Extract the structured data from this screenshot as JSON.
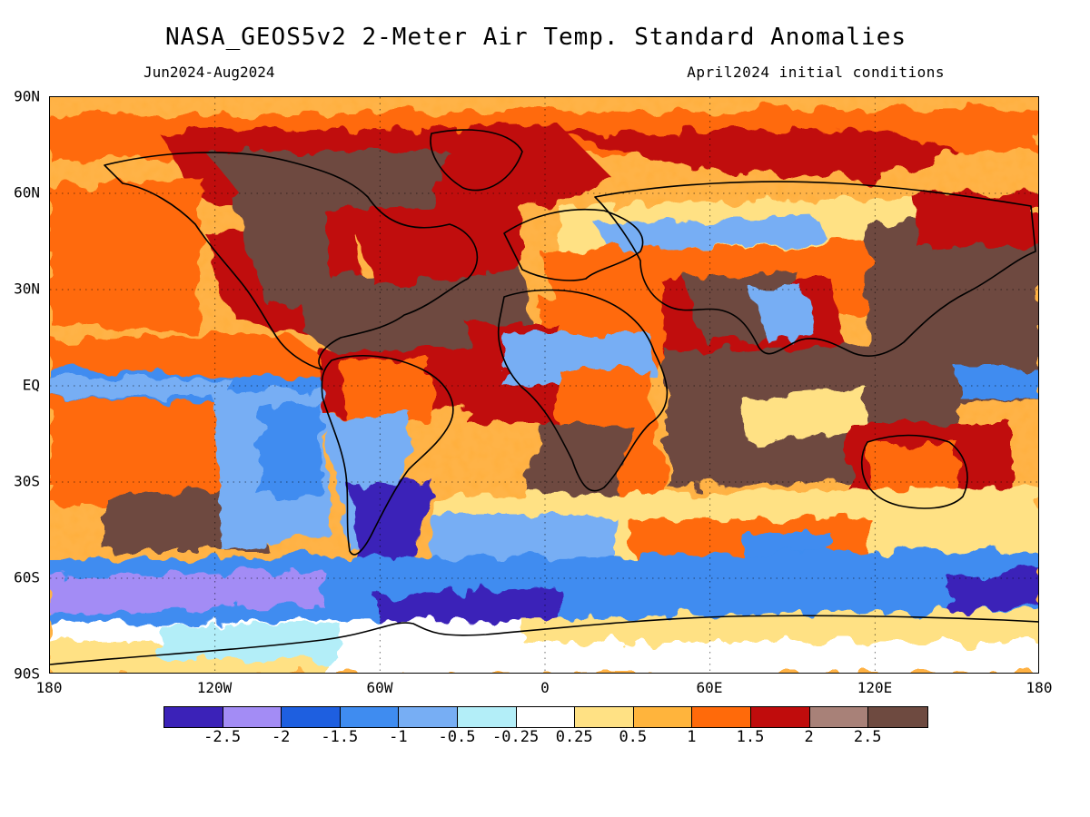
{
  "title": "NASA_GEOS5v2 2-Meter Air Temp. Standard Anomalies",
  "subtitle_left": "Jun2024-Aug2024",
  "subtitle_right": "April2024 initial conditions",
  "lat_labels": [
    "90N",
    "60N",
    "30N",
    "EQ",
    "30S",
    "60S",
    "90S"
  ],
  "lon_labels": [
    "180",
    "120W",
    "60W",
    "0",
    "60E",
    "120E",
    "180"
  ],
  "colorbar": {
    "colors": [
      "#3b22b8",
      "#a38cf5",
      "#1e5fe0",
      "#3f8cf0",
      "#77aef4",
      "#b3eef8",
      "#ffffff",
      "#ffe184",
      "#ffb43c",
      "#ff6a0a",
      "#c00c0c",
      "#a88178",
      "#6e4a40"
    ],
    "labels": [
      "-2.5",
      "-2",
      "-1.5",
      "-1",
      "-0.5",
      "-0.25",
      "0.25",
      "0.5",
      "1",
      "1.5",
      "2",
      "2.5"
    ]
  }
}
